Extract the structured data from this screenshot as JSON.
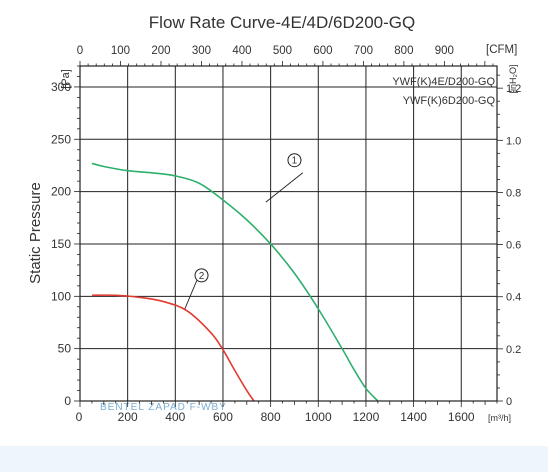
{
  "chart_data": {
    "type": "line",
    "title": "Flow Rate Curve-4E/4D/6D200-GQ",
    "ylabel": "Static Pressure",
    "left_axis_unit": "[Pa]",
    "right_axis_unit": "[inH₂O]",
    "top_axis_unit": "[CFM]",
    "bottom_axis_unit": "[m³/h]",
    "xlim": [
      0,
      1750
    ],
    "ylim": [
      0,
      320
    ],
    "top_xlim": [
      0,
      1030
    ],
    "right_ylim": [
      0,
      1.285
    ],
    "x_ticks": [
      0,
      200,
      400,
      600,
      800,
      1000,
      1200,
      1400,
      1600
    ],
    "y_ticks": [
      0,
      50,
      100,
      150,
      200,
      250,
      300
    ],
    "top_ticks": [
      0,
      100,
      200,
      300,
      400,
      500,
      600,
      700,
      800,
      900
    ],
    "right_ticks": [
      "0",
      "0.2",
      "0.4",
      "0.6",
      "0.8",
      "1.0",
      "1.2"
    ],
    "right_tick_values": [
      0,
      0.2,
      0.4,
      0.6,
      0.8,
      1.0,
      1.2
    ],
    "grid": true,
    "legend_lines": [
      "YWF(K)4E/D200-GQ",
      "YWF(K)6D200-GQ"
    ],
    "series": [
      {
        "label": "1",
        "color": "#2eb06a",
        "x": [
          50,
          100,
          200,
          300,
          400,
          500,
          600,
          700,
          800,
          900,
          1000,
          1100,
          1150,
          1200,
          1250
        ],
        "y": [
          227,
          224,
          220,
          218,
          215,
          208,
          192,
          173,
          150,
          122,
          88,
          50,
          30,
          12,
          0
        ]
      },
      {
        "label": "2",
        "color": "#e23a30",
        "x": [
          50,
          150,
          250,
          350,
          450,
          550,
          600,
          650,
          700,
          730
        ],
        "y": [
          101,
          101,
          99,
          95,
          86,
          65,
          49,
          29,
          10,
          0
        ]
      }
    ],
    "annotations": [
      {
        "label": "1",
        "x": 900,
        "y": 230
      },
      {
        "label": "2",
        "x": 510,
        "y": 120
      }
    ],
    "leader_lines": [
      {
        "series": "1",
        "from": [
          935,
          218
        ],
        "to": [
          780,
          190
        ]
      },
      {
        "series": "2",
        "from": [
          490,
          115
        ],
        "to": [
          440,
          88
        ]
      }
    ]
  },
  "watermark": "BENTEL ZAPAD F-WBY"
}
